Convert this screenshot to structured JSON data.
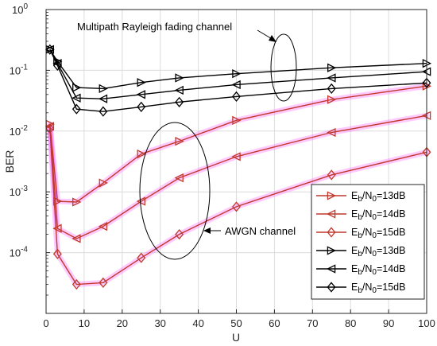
{
  "chart_data": {
    "type": "line",
    "xlabel": "U",
    "ylabel": "BER",
    "xlim": [
      0,
      100
    ],
    "ylim": [
      1e-05,
      1
    ],
    "yscale": "log",
    "grid": true,
    "legend_placement": "bottom-right",
    "x_ticks": [
      "0",
      "10",
      "20",
      "30",
      "40",
      "50",
      "60",
      "70",
      "80",
      "90",
      "100"
    ],
    "y_ticks": [
      {
        "base": "10",
        "exp": "0"
      },
      {
        "base": "10",
        "exp": "-1"
      },
      {
        "base": "10",
        "exp": "-2"
      },
      {
        "base": "10",
        "exp": "-3"
      },
      {
        "base": "10",
        "exp": "-4"
      }
    ],
    "colors": {
      "awgn": "#c0392b",
      "rayleigh": "#000000",
      "glow": "#ff66ff"
    },
    "series": [
      {
        "name": {
          "pre": "E",
          "sub1": "b",
          "mid": "/N",
          "sub2": "0",
          "post": "=13dB"
        },
        "group": "awgn",
        "marker": "triangle-right",
        "x": [
          1,
          3,
          8,
          15,
          25,
          35,
          50,
          75,
          100
        ],
        "y": [
          0.013,
          0.0007,
          0.00068,
          0.0014,
          0.0042,
          0.0068,
          0.015,
          0.033,
          0.055
        ]
      },
      {
        "name": {
          "pre": "E",
          "sub1": "b",
          "mid": "/N",
          "sub2": "0",
          "post": "=14dB"
        },
        "group": "awgn",
        "marker": "triangle-left",
        "x": [
          1,
          3,
          8,
          15,
          25,
          35,
          50,
          75,
          100
        ],
        "y": [
          0.012,
          0.00025,
          0.00017,
          0.00027,
          0.0007,
          0.0017,
          0.0038,
          0.0095,
          0.018
        ]
      },
      {
        "name": {
          "pre": "E",
          "sub1": "b",
          "mid": "/N",
          "sub2": "0",
          "post": "=15dB"
        },
        "group": "awgn",
        "marker": "diamond",
        "x": [
          1,
          3,
          8,
          15,
          25,
          35,
          50,
          75,
          100
        ],
        "y": [
          0.011,
          9.5e-05,
          3e-05,
          3.2e-05,
          8.2e-05,
          0.0002,
          0.00057,
          0.0019,
          0.0045
        ]
      },
      {
        "name": {
          "pre": "E",
          "sub1": "b",
          "mid": "/N",
          "sub2": "0",
          "post": "=13dB"
        },
        "group": "rayleigh",
        "marker": "triangle-right",
        "x": [
          1,
          3,
          8,
          15,
          25,
          35,
          50,
          75,
          100
        ],
        "y": [
          0.22,
          0.14,
          0.052,
          0.05,
          0.063,
          0.075,
          0.088,
          0.11,
          0.13
        ]
      },
      {
        "name": {
          "pre": "E",
          "sub1": "b",
          "mid": "/N",
          "sub2": "0",
          "post": "=14dB"
        },
        "group": "rayleigh",
        "marker": "triangle-left",
        "x": [
          1,
          3,
          8,
          15,
          25,
          35,
          50,
          75,
          100
        ],
        "y": [
          0.22,
          0.13,
          0.035,
          0.034,
          0.04,
          0.047,
          0.058,
          0.075,
          0.095
        ]
      },
      {
        "name": {
          "pre": "E",
          "sub1": "b",
          "mid": "/N",
          "sub2": "0",
          "post": "=15dB"
        },
        "group": "rayleigh",
        "marker": "diamond",
        "x": [
          1,
          3,
          8,
          15,
          25,
          35,
          50,
          75,
          100
        ],
        "y": [
          0.22,
          0.12,
          0.023,
          0.021,
          0.025,
          0.03,
          0.037,
          0.05,
          0.062
        ]
      }
    ],
    "annotations": [
      {
        "text": "Multipath Rayleigh fading channel"
      },
      {
        "text": "AWGN channel"
      }
    ]
  }
}
